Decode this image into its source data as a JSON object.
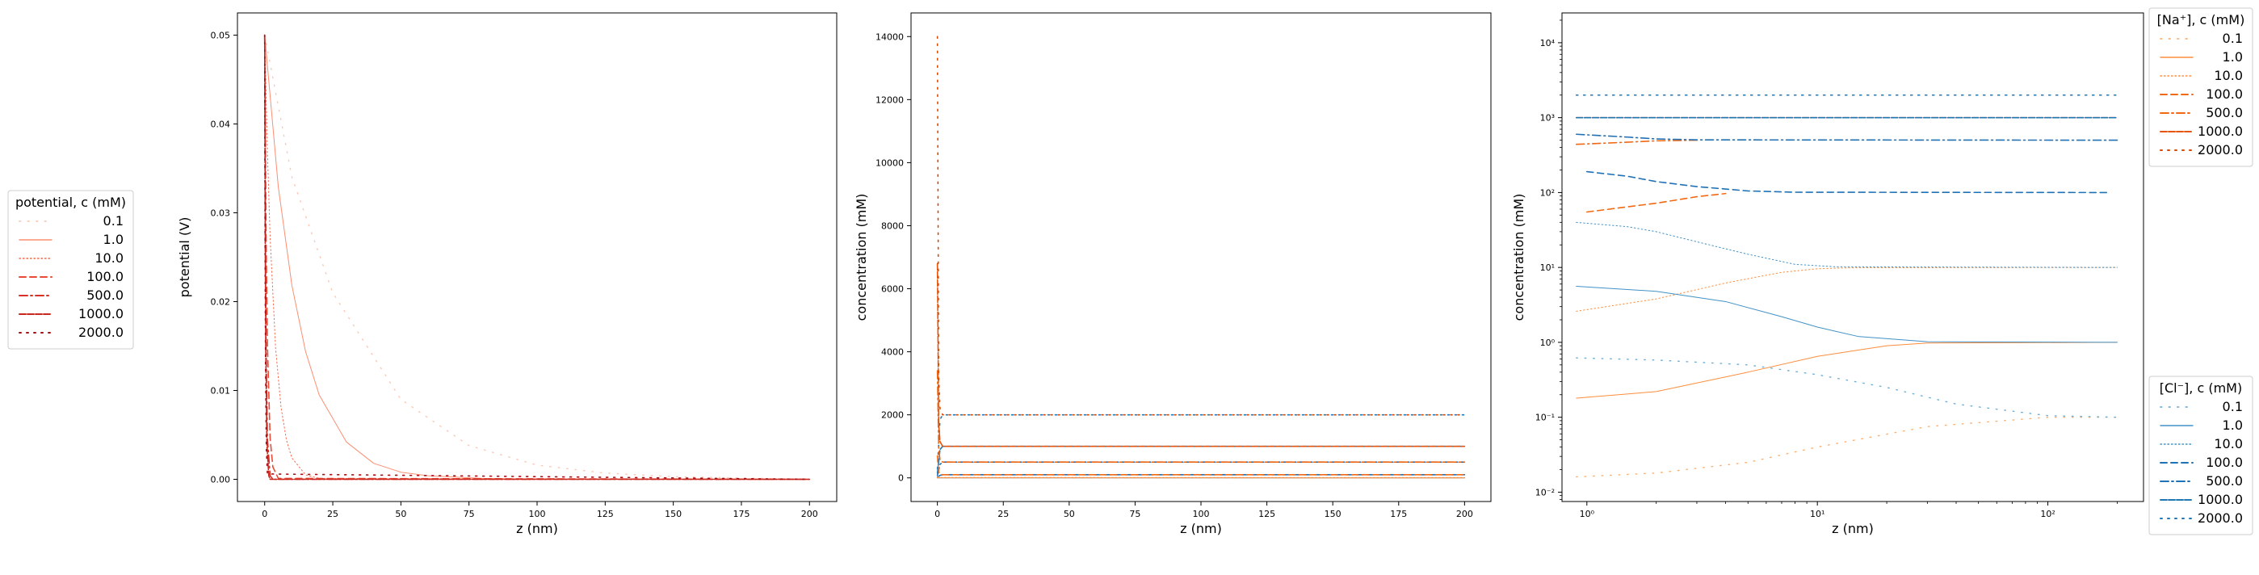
{
  "chart_data": [
    {
      "type": "line",
      "xlabel": "z (nm)",
      "ylabel": "potential (V)",
      "xlim": [
        -10,
        210
      ],
      "ylim": [
        -0.0025,
        0.0525
      ],
      "xticks": [
        0,
        25,
        50,
        75,
        100,
        125,
        150,
        175,
        200
      ],
      "yticks": [
        0.0,
        0.01,
        0.02,
        0.03,
        0.04,
        0.05
      ],
      "ytick_labels": [
        "0.00",
        "0.01",
        "0.02",
        "0.03",
        "0.04",
        "0.05"
      ],
      "legend": {
        "title": "potential, $c$ (mM)",
        "title_plain": "potential, c (mM)",
        "placement": "outside-left",
        "entries": [
          "0.1",
          "1.0",
          "10.0",
          "100.0",
          "500.0",
          "1000.0",
          "2000.0"
        ]
      },
      "series": [
        {
          "name": "0.1",
          "color": "#fcc8b3",
          "x": [
            0,
            10,
            25,
            50,
            75,
            100,
            125,
            150,
            200
          ],
          "y": [
            0.05,
            0.034,
            0.021,
            0.009,
            0.0038,
            0.0016,
            0.0007,
            0.0003,
            0.0
          ]
        },
        {
          "name": "1.0",
          "color": "#fb8f72",
          "x": [
            0,
            5,
            10,
            15,
            20,
            30,
            40,
            50,
            60,
            80,
            100,
            200
          ],
          "y": [
            0.05,
            0.0329,
            0.0218,
            0.0144,
            0.0095,
            0.0042,
            0.0018,
            0.0008,
            0.0004,
            0.0001,
            0.0,
            0.0
          ]
        },
        {
          "name": "10.0",
          "color": "#f7694c",
          "x": [
            0,
            1,
            2,
            4,
            6,
            8,
            10,
            15,
            20,
            200
          ],
          "y": [
            0.05,
            0.0369,
            0.0272,
            0.0148,
            0.0081,
            0.0044,
            0.0024,
            0.0005,
            0.0001,
            0.0
          ]
        },
        {
          "name": "100.0",
          "color": "#e94a35",
          "x": [
            0,
            0.5,
            1,
            2,
            3,
            5,
            200
          ],
          "y": [
            0.05,
            0.0276,
            0.0152,
            0.0046,
            0.0014,
            0.0001,
            0.0
          ]
        },
        {
          "name": "500.0",
          "color": "#d73027",
          "x": [
            0,
            0.25,
            0.5,
            1,
            2,
            3,
            200
          ],
          "y": [
            0.05,
            0.0275,
            0.0151,
            0.0046,
            0.0004,
            0.0,
            0.0
          ]
        },
        {
          "name": "1000.0",
          "color": "#c8271e",
          "x": [
            0,
            0.2,
            0.4,
            0.8,
            1.5,
            2,
            200
          ],
          "y": [
            0.05,
            0.0268,
            0.0144,
            0.0041,
            0.0004,
            0.0,
            0.0
          ]
        },
        {
          "name": "2000.0",
          "color": "#a50f15",
          "x": [
            0,
            0.15,
            0.3,
            0.6,
            1,
            200
          ],
          "y": [
            0.05,
            0.0258,
            0.0133,
            0.0035,
            0.0006,
            0.0
          ]
        }
      ]
    },
    {
      "type": "line",
      "xlabel": "z (nm)",
      "ylabel": "concentration (mM)",
      "xlim": [
        -10,
        210
      ],
      "ylim": [
        -750,
        14750
      ],
      "xticks": [
        0,
        25,
        50,
        75,
        100,
        125,
        150,
        175,
        200
      ],
      "yticks": [
        0,
        2000,
        4000,
        6000,
        8000,
        10000,
        12000,
        14000
      ],
      "series": [
        {
          "name": "Cl 0.1",
          "color": "#6baed6",
          "x": [
            0,
            1,
            200
          ],
          "y": [
            0.01,
            0.09,
            0.1
          ]
        },
        {
          "name": "Cl 1.0",
          "color": "#4292c6",
          "x": [
            0,
            1,
            200
          ],
          "y": [
            0.2,
            0.9,
            1.0
          ]
        },
        {
          "name": "Cl 10.0",
          "color": "#4292c6",
          "x": [
            0,
            1,
            200
          ],
          "y": [
            3,
            9,
            10
          ]
        },
        {
          "name": "Cl 100.0",
          "color": "#2171b5",
          "x": [
            0,
            1,
            2,
            200
          ],
          "y": [
            14,
            80,
            100,
            100
          ]
        },
        {
          "name": "Cl 500.0",
          "color": "#2171b5",
          "x": [
            0,
            1,
            2,
            200
          ],
          "y": [
            75,
            430,
            500,
            500
          ]
        },
        {
          "name": "Cl 1000.0",
          "color": "#1f77b4",
          "x": [
            0,
            1,
            2,
            200
          ],
          "y": [
            150,
            900,
            1000,
            1000
          ]
        },
        {
          "name": "Cl 2000.0",
          "color": "#1f77b4",
          "x": [
            0,
            1,
            2,
            200
          ],
          "y": [
            290,
            1850,
            2000,
            2000
          ]
        },
        {
          "name": "Na 0.1",
          "color": "#fdae6b",
          "x": [
            0,
            1,
            200
          ],
          "y": [
            0.7,
            0.11,
            0.1
          ]
        },
        {
          "name": "Na 1.0",
          "color": "#fd8d3c",
          "x": [
            0,
            1,
            200
          ],
          "y": [
            6.8,
            1.1,
            1.0
          ]
        },
        {
          "name": "Na 10.0",
          "color": "#fd8d3c",
          "x": [
            0,
            1,
            200
          ],
          "y": [
            42,
            11,
            10
          ]
        },
        {
          "name": "Na 100.0",
          "color": "#f16913",
          "x": [
            0,
            0.5,
            1,
            2,
            200
          ],
          "y": [
            700,
            180,
            120,
            100,
            100
          ]
        },
        {
          "name": "Na 500.0",
          "color": "#f16913",
          "x": [
            0,
            0.5,
            1,
            2,
            200
          ],
          "y": [
            3400,
            900,
            580,
            500,
            500
          ]
        },
        {
          "name": "Na 1000.0",
          "color": "#e6550d",
          "x": [
            0,
            0.5,
            1,
            2,
            200
          ],
          "y": [
            6800,
            1700,
            1150,
            1000,
            1000
          ]
        },
        {
          "name": "Na 2000.0",
          "color": "#d94801",
          "x": [
            0,
            0.5,
            1,
            2,
            200
          ],
          "y": [
            14000,
            3200,
            2200,
            2000,
            2000
          ]
        }
      ]
    },
    {
      "type": "line",
      "xscale": "log",
      "yscale": "log",
      "xlabel": "z (nm)",
      "ylabel": "concentration (mM)",
      "xlim": [
        0.78,
        260
      ],
      "ylim": [
        0.0075,
        25000
      ],
      "xticks": [
        1,
        10,
        100
      ],
      "xtick_labels": [
        "10⁰",
        "10¹",
        "10²"
      ],
      "yticks": [
        0.01,
        0.1,
        1,
        10,
        100,
        1000,
        10000
      ],
      "ytick_labels": [
        "10⁻²",
        "10⁻¹",
        "10⁰",
        "10¹",
        "10²",
        "10³",
        "10⁴"
      ],
      "legends": [
        {
          "title": "[Na$^+$], $c$ (mM)",
          "title_plain": "[Na⁺], c (mM)",
          "placement": "upper-right-outside",
          "entries": [
            "0.1",
            "1.0",
            "10.0",
            "100.0",
            "500.0",
            "1000.0",
            "2000.0"
          ]
        },
        {
          "title": "[Cl$^-$], $c$ (mM)",
          "title_plain": "[Cl⁻], c (mM)",
          "placement": "lower-right-outside",
          "entries": [
            "0.1",
            "1.0",
            "10.0",
            "100.0",
            "500.0",
            "1000.0",
            "2000.0"
          ]
        }
      ],
      "series": [
        {
          "name": "Na 0.1",
          "color": "#fdae6b",
          "x": [
            0.9,
            2,
            5,
            10,
            30,
            100,
            200
          ],
          "y": [
            0.016,
            0.018,
            0.025,
            0.04,
            0.075,
            0.1,
            0.1
          ]
        },
        {
          "name": "Na 1.0",
          "color": "#fd8d3c",
          "x": [
            0.9,
            2,
            5,
            10,
            20,
            30,
            200
          ],
          "y": [
            0.18,
            0.22,
            0.4,
            0.65,
            0.9,
            0.98,
            1.0
          ]
        },
        {
          "name": "Na 10.0",
          "color": "#fd8d3c",
          "x": [
            0.9,
            2,
            4,
            7,
            10,
            14,
            200
          ],
          "y": [
            2.6,
            3.8,
            6.2,
            8.6,
            9.6,
            9.9,
            10
          ]
        },
        {
          "name": "Na 100.0",
          "color": "#f16913",
          "x": [
            1.0,
            2,
            3,
            4
          ],
          "y": [
            55,
            72,
            88,
            97
          ]
        },
        {
          "name": "Na 500.0",
          "color": "#f16913",
          "x": [
            0.9,
            1.5,
            2,
            3
          ],
          "y": [
            440,
            470,
            490,
            500
          ]
        },
        {
          "name": "Na 1000.0",
          "color": "#e6550d",
          "x": [
            0.9,
            200
          ],
          "y": [
            1000,
            1000
          ]
        },
        {
          "name": "Na 2000.0",
          "color": "#d94801",
          "x": [
            0.9,
            200
          ],
          "y": [
            2000,
            2000
          ]
        },
        {
          "name": "Cl 0.1",
          "color": "#6baed6",
          "x": [
            0.9,
            2,
            5,
            10,
            20,
            40,
            100,
            200
          ],
          "y": [
            0.62,
            0.58,
            0.5,
            0.37,
            0.25,
            0.15,
            0.105,
            0.1
          ]
        },
        {
          "name": "Cl 1.0",
          "color": "#4292c6",
          "x": [
            0.9,
            2,
            4,
            7,
            10,
            15,
            30,
            200
          ],
          "y": [
            5.6,
            4.8,
            3.5,
            2.2,
            1.6,
            1.2,
            1.02,
            1.0
          ]
        },
        {
          "name": "Cl 10.0",
          "color": "#4292c6",
          "x": [
            0.9,
            1.5,
            2,
            3,
            5,
            8,
            12,
            200
          ],
          "y": [
            40,
            35,
            30,
            22,
            15,
            11,
            10.2,
            10
          ]
        },
        {
          "name": "Cl 100.0",
          "color": "#2171b5",
          "x": [
            1.0,
            1.5,
            2,
            3,
            5,
            8,
            180
          ],
          "y": [
            190,
            165,
            140,
            120,
            105,
            101,
            100
          ]
        },
        {
          "name": "Cl 500.0",
          "color": "#2171b5",
          "x": [
            0.9,
            1.5,
            2,
            3,
            200
          ],
          "y": [
            600,
            550,
            520,
            505,
            500
          ]
        },
        {
          "name": "Cl 1000.0",
          "color": "#1f77b4",
          "x": [
            0.9,
            200
          ],
          "y": [
            1000,
            1000
          ]
        },
        {
          "name": "Cl 2000.0",
          "color": "#1f77b4",
          "x": [
            0.9,
            200
          ],
          "y": [
            2000,
            2000
          ]
        }
      ]
    }
  ]
}
